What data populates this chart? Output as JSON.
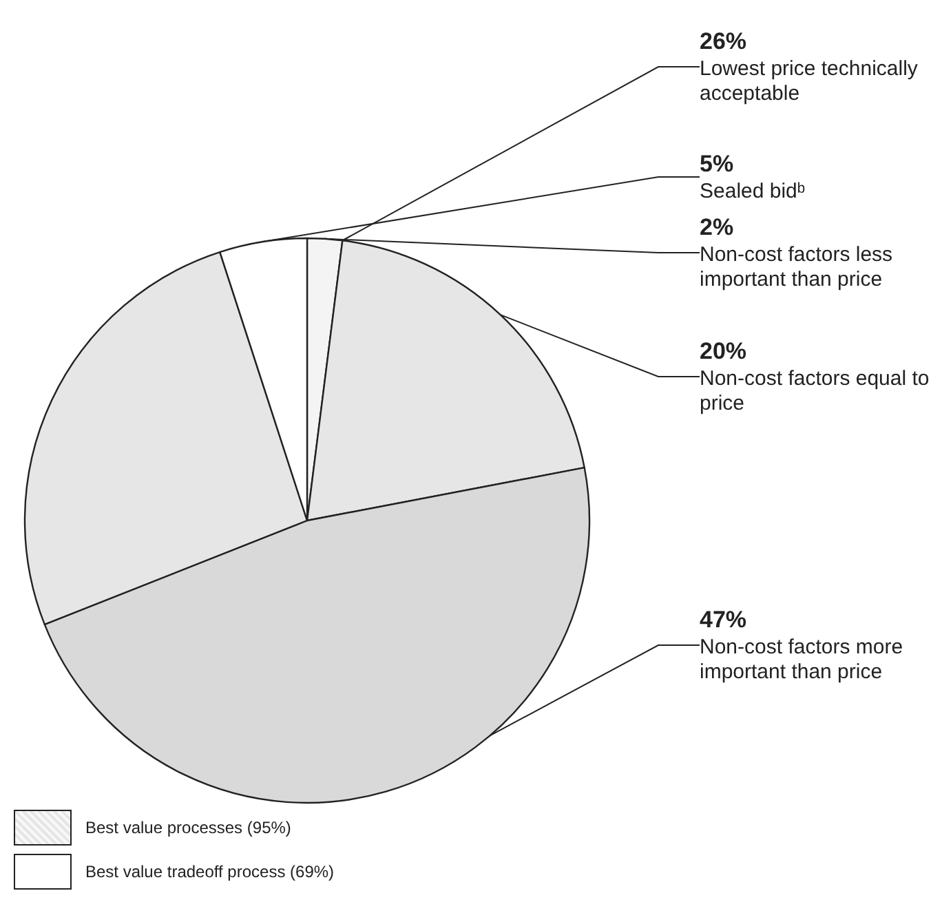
{
  "chart_data": {
    "type": "pie",
    "categories": [
      "Non-cost factors less important than price",
      "Non-cost factors equal to price",
      "Non-cost factors more important than price",
      "Lowest price technically acceptable",
      "Sealed bidᵇ"
    ],
    "values": [
      2,
      20,
      47,
      26,
      5
    ],
    "colors": [
      "#f4f4f4",
      "#e6e6e6",
      "#d9d9d9",
      "#e6e6e6",
      "#ffffff"
    ],
    "value_labels": [
      "2%",
      "20%",
      "47%",
      "26%",
      "5%"
    ],
    "annotations": [
      "Best value processes (95%)",
      "Best value tradeoff process (69%)"
    ]
  }
}
